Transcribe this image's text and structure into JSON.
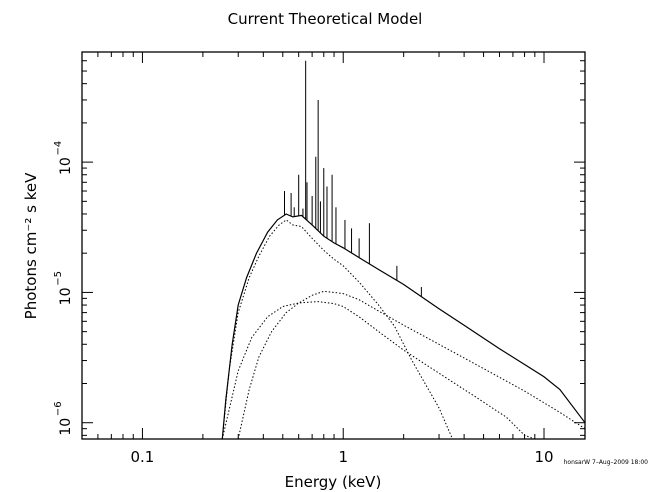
{
  "chart_data": {
    "type": "line",
    "title": "Current Theoretical Model",
    "xlabel": "Energy (keV)",
    "ylabel": "Photons cm⁻² s keV",
    "xscale": "log",
    "yscale": "log",
    "xlim": [
      0.05,
      16
    ],
    "ylim": [
      7.5e-07,
      0.0007
    ],
    "x_ticks": [
      {
        "value": 0.1,
        "label": "0.1"
      },
      {
        "value": 1,
        "label": "1"
      },
      {
        "value": 10,
        "label": "10"
      }
    ],
    "y_ticks": [
      {
        "value": 1e-06,
        "label": "10",
        "exp": "−6"
      },
      {
        "value": 1e-05,
        "label": "10",
        "exp": "−5"
      },
      {
        "value": 0.0001,
        "label": "10",
        "exp": "−4"
      }
    ],
    "footer": "honsarW  7–Aug–2009 18:00",
    "series": [
      {
        "style": "solid",
        "points": [
          [
            0.25,
            7.5e-07
          ],
          [
            0.26,
            1.5e-06
          ],
          [
            0.28,
            4e-06
          ],
          [
            0.3,
            8e-06
          ],
          [
            0.33,
            1.3e-05
          ],
          [
            0.37,
            2e-05
          ],
          [
            0.42,
            2.9e-05
          ],
          [
            0.47,
            3.6e-05
          ],
          [
            0.52,
            4e-05
          ],
          [
            0.56,
            3.8e-05
          ],
          [
            0.62,
            3.9e-05
          ],
          [
            0.7,
            3.3e-05
          ],
          [
            0.8,
            2.7e-05
          ],
          [
            0.9,
            2.4e-05
          ],
          [
            1.0,
            2.2e-05
          ],
          [
            1.2,
            1.85e-05
          ],
          [
            1.5,
            1.5e-05
          ],
          [
            2.0,
            1.15e-05
          ],
          [
            3.0,
            7.5e-06
          ],
          [
            4.0,
            5.6e-06
          ],
          [
            6.0,
            3.7e-06
          ],
          [
            8.0,
            2.8e-06
          ],
          [
            10.0,
            2.25e-06
          ],
          [
            12.0,
            1.8e-06
          ],
          [
            16.0,
            1e-06
          ]
        ],
        "lines": [
          [
            0.51,
            6e-05
          ],
          [
            0.55,
            5.8e-05
          ],
          [
            0.57,
            4.5e-05
          ],
          [
            0.6,
            8e-05
          ],
          [
            0.63,
            4.4e-05
          ],
          [
            0.65,
            0.0006
          ],
          [
            0.66,
            7e-05
          ],
          [
            0.7,
            5.5e-05
          ],
          [
            0.73,
            0.00011
          ],
          [
            0.75,
            0.0003
          ],
          [
            0.77,
            5e-05
          ],
          [
            0.8,
            9e-05
          ],
          [
            0.83,
            6.5e-05
          ],
          [
            0.88,
            8e-05
          ],
          [
            0.92,
            4.5e-05
          ],
          [
            1.02,
            3.6e-05
          ],
          [
            1.1,
            3.1e-05
          ],
          [
            1.2,
            2.6e-05
          ],
          [
            1.35,
            3.4e-05
          ],
          [
            1.85,
            1.6e-05
          ],
          [
            2.45,
            1.1e-05
          ],
          [
            6.7,
            3.3e-06
          ]
        ]
      },
      {
        "style": "dotted",
        "points": [
          [
            0.25,
            7.5e-07
          ],
          [
            0.27,
            2.5e-06
          ],
          [
            0.3,
            7e-06
          ],
          [
            0.34,
            1.3e-05
          ],
          [
            0.38,
            1.9e-05
          ],
          [
            0.43,
            2.7e-05
          ],
          [
            0.48,
            3.3e-05
          ],
          [
            0.52,
            3.6e-05
          ],
          [
            0.56,
            3.3e-05
          ],
          [
            0.62,
            3.2e-05
          ],
          [
            0.7,
            2.6e-05
          ],
          [
            0.8,
            2.1e-05
          ],
          [
            0.9,
            1.8e-05
          ],
          [
            1.0,
            1.6e-05
          ],
          [
            1.2,
            1.2e-05
          ],
          [
            1.5,
            8e-06
          ],
          [
            1.8,
            5.5e-06
          ],
          [
            2.2,
            3e-06
          ],
          [
            3.0,
            1.3e-06
          ],
          [
            3.5,
            7.5e-07
          ]
        ]
      },
      {
        "style": "dotted",
        "points": [
          [
            0.3,
            7.5e-07
          ],
          [
            0.34,
            1.8e-06
          ],
          [
            0.38,
            3.2e-06
          ],
          [
            0.44,
            5e-06
          ],
          [
            0.52,
            7e-06
          ],
          [
            0.6,
            8.3e-06
          ],
          [
            0.7,
            9.5e-06
          ],
          [
            0.8,
            1.02e-05
          ],
          [
            0.9,
            1e-05
          ],
          [
            1.0,
            9.8e-06
          ],
          [
            1.2,
            8.8e-06
          ],
          [
            1.5,
            7.2e-06
          ],
          [
            2.0,
            5.6e-06
          ],
          [
            3.0,
            4e-06
          ],
          [
            5.0,
            2.6e-06
          ],
          [
            8.0,
            1.75e-06
          ],
          [
            12.0,
            1.2e-06
          ],
          [
            16.0,
            9e-07
          ]
        ]
      },
      {
        "style": "dotted",
        "points": [
          [
            0.25,
            7.5e-07
          ],
          [
            0.3,
            2.5e-06
          ],
          [
            0.35,
            4.5e-06
          ],
          [
            0.42,
            6.5e-06
          ],
          [
            0.5,
            7.8e-06
          ],
          [
            0.6,
            8.3e-06
          ],
          [
            0.75,
            8.5e-06
          ],
          [
            0.9,
            8.2e-06
          ],
          [
            1.0,
            7.8e-06
          ],
          [
            1.2,
            6.5e-06
          ],
          [
            1.5,
            5e-06
          ],
          [
            2.0,
            3.6e-06
          ],
          [
            3.0,
            2.4e-06
          ],
          [
            4.5,
            1.6e-06
          ],
          [
            6.5,
            1.1e-06
          ],
          [
            8.0,
            8e-07
          ],
          [
            9.0,
            7.5e-07
          ]
        ]
      }
    ]
  }
}
